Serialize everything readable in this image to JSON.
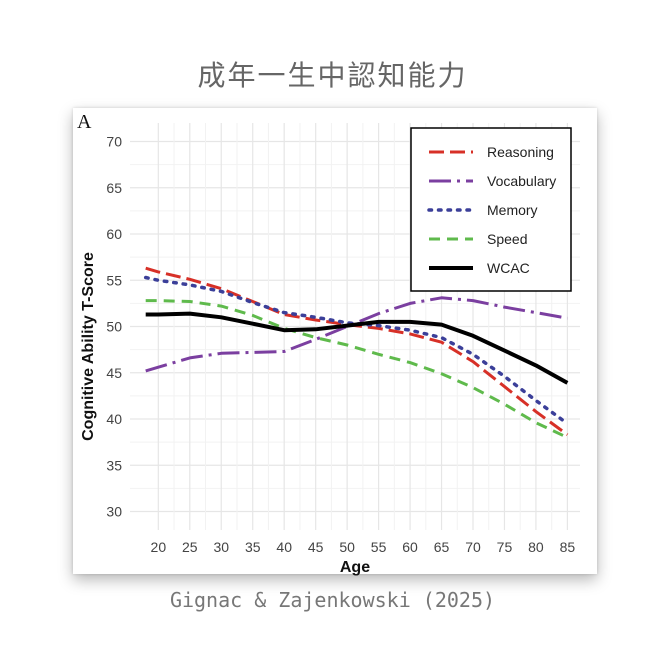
{
  "page_title": "成年一生中認知能力",
  "panel_label": "A",
  "credit": "Gignac & Zajenkowski (2025)",
  "chart_data": {
    "type": "line",
    "title": "",
    "xlabel": "Age",
    "ylabel": "Cognitive Ability T-Score",
    "x": [
      18,
      20,
      25,
      30,
      35,
      40,
      45,
      50,
      55,
      60,
      65,
      70,
      75,
      80,
      85
    ],
    "xticks": [
      20,
      25,
      30,
      35,
      40,
      45,
      50,
      55,
      60,
      65,
      70,
      75,
      80,
      85
    ],
    "xlim": [
      15.5,
      87
    ],
    "ylim": [
      28,
      72
    ],
    "yticks": [
      30,
      35,
      40,
      45,
      50,
      55,
      60,
      65,
      70
    ],
    "grid": true,
    "legend_position": "top-right",
    "series": [
      {
        "name": "Reasoning",
        "color": "#d73027",
        "style": "longdash",
        "values": [
          56.3,
          55.9,
          55.1,
          54.1,
          52.7,
          51.3,
          50.7,
          50.2,
          49.8,
          49.2,
          48.3,
          46.2,
          43.5,
          40.8,
          38.3
        ]
      },
      {
        "name": "Vocabulary",
        "color": "#7b3fa0",
        "style": "dashdot",
        "values": [
          45.2,
          45.6,
          46.6,
          47.1,
          47.2,
          47.3,
          48.6,
          50.0,
          51.4,
          52.5,
          53.1,
          52.8,
          52.1,
          51.5,
          50.9
        ]
      },
      {
        "name": "Memory",
        "color": "#3b3f99",
        "style": "dotted",
        "values": [
          55.3,
          55.0,
          54.5,
          53.8,
          52.6,
          51.5,
          51.0,
          50.4,
          50.1,
          49.6,
          48.8,
          47.0,
          44.6,
          42.0,
          39.5
        ]
      },
      {
        "name": "Speed",
        "color": "#5fba4c",
        "style": "dashed",
        "values": [
          52.8,
          52.8,
          52.7,
          52.2,
          51.2,
          49.8,
          48.8,
          48.0,
          47.0,
          46.1,
          44.9,
          43.4,
          41.6,
          39.6,
          38.0
        ]
      },
      {
        "name": "WCAC",
        "color": "#000000",
        "style": "solid",
        "values": [
          51.3,
          51.3,
          51.4,
          51.0,
          50.3,
          49.6,
          49.7,
          50.1,
          50.5,
          50.5,
          50.2,
          49.0,
          47.4,
          45.8,
          43.9
        ]
      }
    ]
  }
}
